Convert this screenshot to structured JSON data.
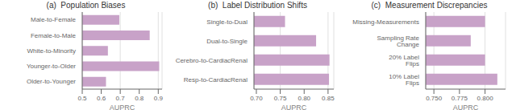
{
  "chart_data": [
    {
      "type": "bar",
      "orientation": "horizontal",
      "title": "(a)  Population Biases",
      "xlabel": "AUPRC",
      "categories": [
        "Male-to-Female",
        "Female-to-Male",
        "White-to-Minority",
        "Younger-to-Older",
        "Older-to-Younger"
      ],
      "values": [
        0.695,
        0.855,
        0.635,
        0.905,
        0.625
      ],
      "xlim": [
        0.5,
        0.92
      ],
      "xticks": [
        0.5,
        0.6,
        0.7,
        0.8,
        0.9
      ],
      "color": "#c8a2c8",
      "grid": true
    },
    {
      "type": "bar",
      "orientation": "horizontal",
      "title": "(b)  Label Distribution Shifts",
      "xlabel": "AUPRC",
      "categories": [
        "Single-to-Dual",
        "Dual-to-Single",
        "Cerebro-to-CardiacRenal",
        "Resp-to-CardiacRenal"
      ],
      "values": [
        0.76,
        0.825,
        0.853,
        0.852
      ],
      "xlim": [
        0.695,
        0.862
      ],
      "xticks": [
        {
          "value": 0.7,
          "label": "0.70"
        },
        0.75,
        {
          "value": 0.8,
          "label": "0.80"
        },
        0.85
      ],
      "color": "#c8a2c8",
      "grid": true
    },
    {
      "type": "bar",
      "orientation": "horizontal",
      "title": "(c)  Measurement Discrepancies",
      "xlabel": "AUPRC",
      "categories": [
        "Missing-Measurements",
        "Sampling Rate Change",
        "20% Label Flips",
        "10% Label Flips"
      ],
      "values": [
        0.8,
        0.786,
        0.8,
        0.812
      ],
      "xlim": [
        0.742,
        0.82
      ],
      "xticks": [
        {
          "value": 0.75,
          "label": "0.750"
        },
        0.775,
        {
          "value": 0.8,
          "label": "0.800"
        }
      ],
      "color": "#c8a2c8",
      "grid": true
    }
  ]
}
